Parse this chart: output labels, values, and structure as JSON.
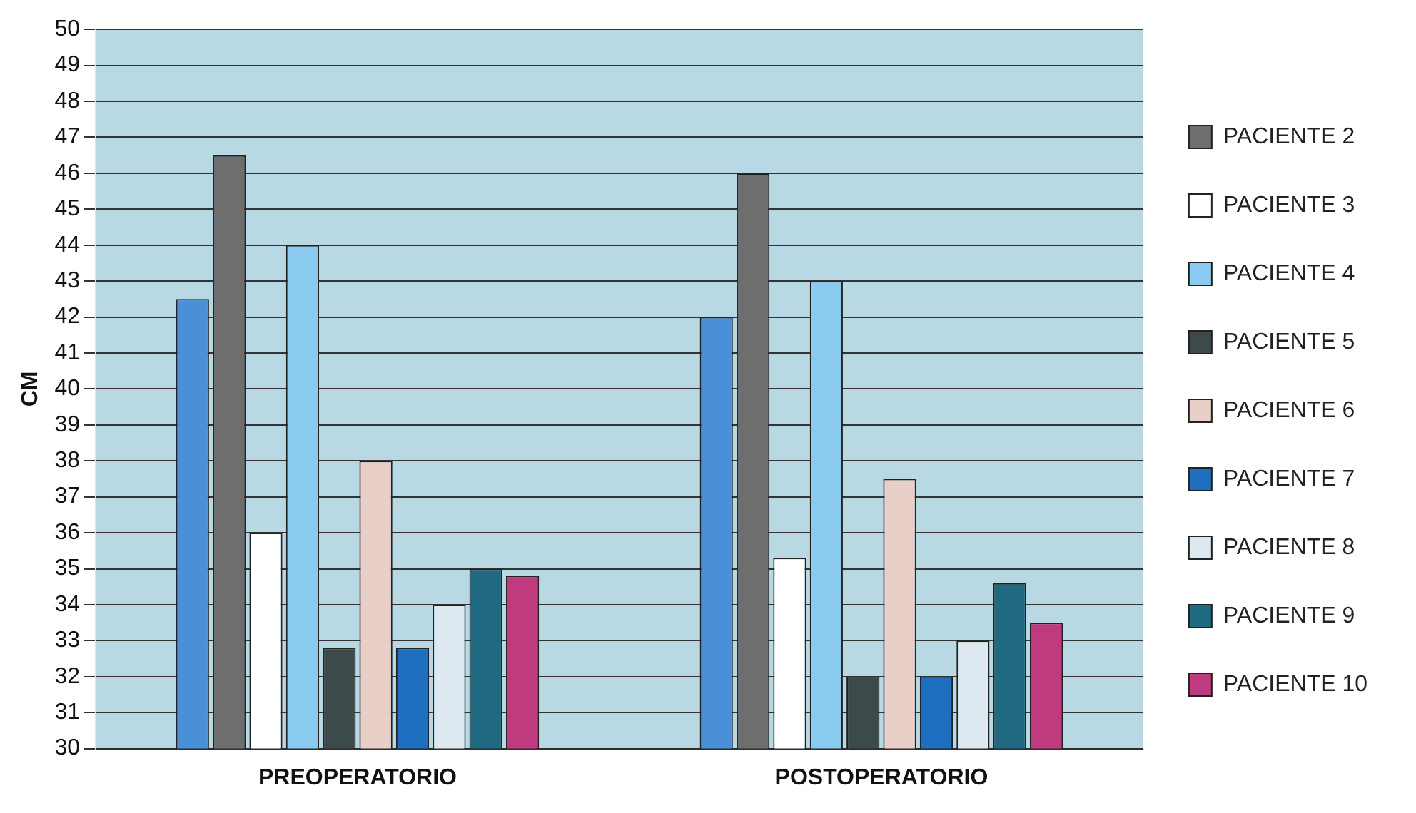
{
  "chart_data": {
    "type": "bar",
    "ylabel": "CM",
    "categories": [
      "PREOPERATORIO",
      "POSTOPERATORIO"
    ],
    "series": [
      {
        "color": "#4a90d9",
        "values": [
          42.5,
          42
        ]
      },
      {
        "name": "PACIENTE 2",
        "color": "#6e6e6e",
        "values": [
          46.5,
          46
        ]
      },
      {
        "name": "PACIENTE 3",
        "color": "#ffffff",
        "values": [
          36,
          35.3
        ]
      },
      {
        "name": "PACIENTE 4",
        "color": "#8ccbf0",
        "values": [
          44,
          43
        ]
      },
      {
        "name": "PACIENTE 5",
        "color": "#3d4a4a",
        "values": [
          32.8,
          32
        ]
      },
      {
        "name": "PACIENTE 6",
        "color": "#e8d0c8",
        "values": [
          38,
          37.5
        ]
      },
      {
        "name": "PACIENTE 7",
        "color": "#1e6fc0",
        "values": [
          32.8,
          32
        ]
      },
      {
        "name": "PACIENTE 8",
        "color": "#dde8f0",
        "values": [
          34,
          33
        ]
      },
      {
        "name": "PACIENTE 9",
        "color": "#1f6a80",
        "values": [
          35,
          34.6
        ]
      },
      {
        "name": "PACIENTE 10",
        "color": "#c03a80",
        "values": [
          34.8,
          33.5
        ]
      }
    ],
    "ylim": [
      30,
      50
    ],
    "yticks": [
      30,
      31,
      32,
      33,
      34,
      35,
      36,
      37,
      38,
      39,
      40,
      41,
      42,
      43,
      44,
      45,
      46,
      47,
      48,
      49,
      50
    ],
    "grid": "y",
    "legend": "right"
  }
}
